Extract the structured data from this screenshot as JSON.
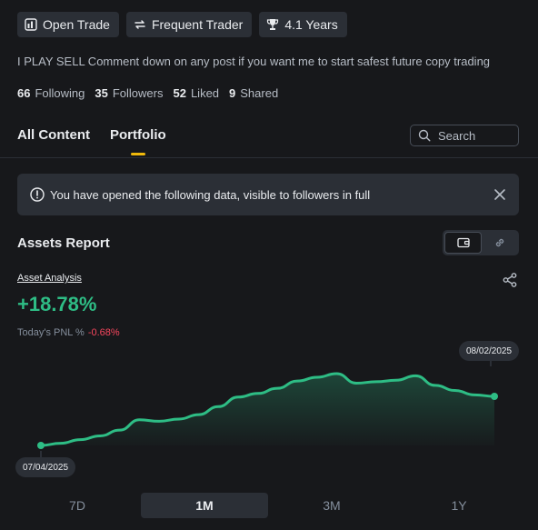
{
  "badges": [
    {
      "icon": "trade-icon",
      "label": "Open Trade"
    },
    {
      "icon": "repeat-icon",
      "label": "Frequent Trader"
    },
    {
      "icon": "trophy-icon",
      "label": "4.1 Years"
    }
  ],
  "bio": "I PLAY SELL Comment down on any post if you want me to start safest future copy trading",
  "stats": [
    {
      "value": "66",
      "label": "Following"
    },
    {
      "value": "35",
      "label": "Followers"
    },
    {
      "value": "52",
      "label": "Liked"
    },
    {
      "value": "9",
      "label": "Shared"
    }
  ],
  "tabs": [
    {
      "label": "All Content",
      "active": false
    },
    {
      "label": "Portfolio",
      "active": true
    }
  ],
  "search": {
    "placeholder": "Search"
  },
  "notice": {
    "text": "You have opened the following data, visible to followers in full"
  },
  "assets": {
    "title": "Assets Report",
    "analysis_label": "Asset Analysis",
    "pnl_total": "+18.78%",
    "today_label": "Today's PNL %",
    "today_value": "-0.68%"
  },
  "chart_data": {
    "type": "area",
    "title": "",
    "xlabel": "",
    "ylabel": "",
    "start_label": "07/04/2025",
    "end_label": "08/02/2025",
    "color": "#2ebd85",
    "y": [
      0.0,
      0.6,
      1.6,
      2.6,
      4.2,
      7.0,
      6.6,
      7.2,
      8.4,
      10.6,
      13.2,
      14.2,
      15.6,
      17.6,
      18.6,
      19.6,
      17.0,
      17.4,
      17.8,
      19.0,
      16.4,
      15.0,
      13.8,
      13.4
    ]
  },
  "ranges": [
    {
      "label": "7D",
      "active": false
    },
    {
      "label": "1M",
      "active": true
    },
    {
      "label": "3M",
      "active": false
    },
    {
      "label": "1Y",
      "active": false
    }
  ]
}
